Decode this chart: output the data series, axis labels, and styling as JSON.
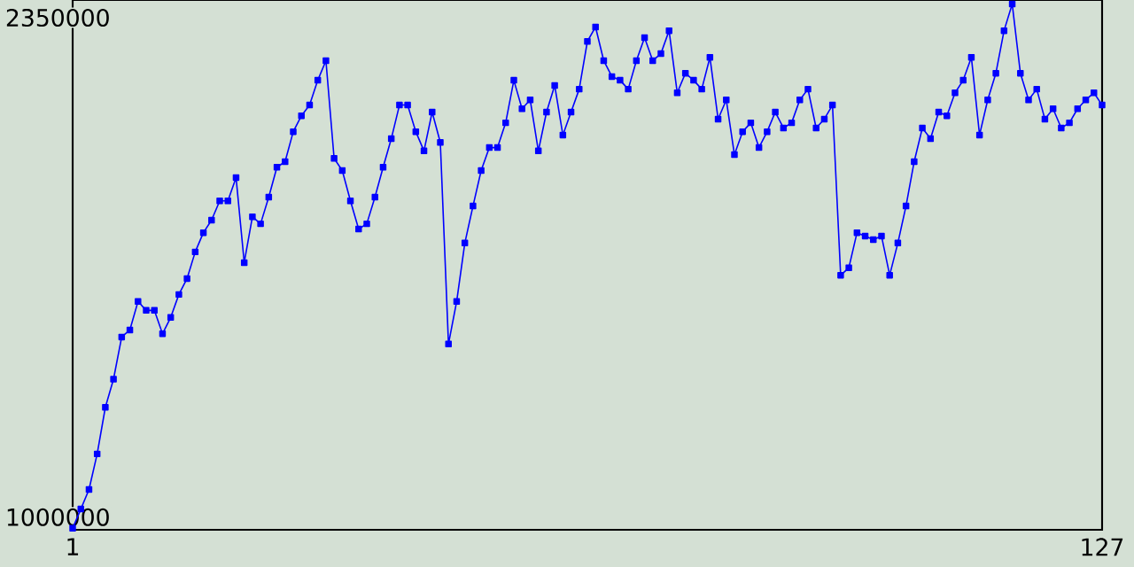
{
  "chart_data": {
    "type": "line",
    "x": [
      1,
      2,
      3,
      4,
      5,
      6,
      7,
      8,
      9,
      10,
      11,
      12,
      13,
      14,
      15,
      16,
      17,
      18,
      19,
      20,
      21,
      22,
      23,
      24,
      25,
      26,
      27,
      28,
      29,
      30,
      31,
      32,
      33,
      34,
      35,
      36,
      37,
      38,
      39,
      40,
      41,
      42,
      43,
      44,
      45,
      46,
      47,
      48,
      49,
      50,
      51,
      52,
      53,
      54,
      55,
      56,
      57,
      58,
      59,
      60,
      61,
      62,
      63,
      64,
      65,
      66,
      67,
      68,
      69,
      70,
      71,
      72,
      73,
      74,
      75,
      76,
      77,
      78,
      79,
      80,
      81,
      82,
      83,
      84,
      85,
      86,
      87,
      88,
      89,
      90,
      91,
      92,
      93,
      94,
      95,
      96,
      97,
      98,
      99,
      100,
      101,
      102,
      103,
      104,
      105,
      106,
      107,
      108,
      109,
      110,
      111,
      112,
      113,
      114,
      115,
      116,
      117,
      118,
      119,
      120,
      121,
      122,
      123,
      124,
      125,
      126,
      127
    ],
    "series": [
      {
        "color": "#0000ff",
        "values": [
          970000,
          1022000,
          1075000,
          1171000,
          1297000,
          1373000,
          1487000,
          1506000,
          1583000,
          1559000,
          1559000,
          1496000,
          1540000,
          1602000,
          1645000,
          1717000,
          1769000,
          1803000,
          1855000,
          1855000,
          1918000,
          1688000,
          1812000,
          1793000,
          1865000,
          1946000,
          1961000,
          2042000,
          2085000,
          2114000,
          2181000,
          2234000,
          1970000,
          1937000,
          1855000,
          1779000,
          1793000,
          1865000,
          1946000,
          2023000,
          2114000,
          2114000,
          2042000,
          1990000,
          2095000,
          2013000,
          1468000,
          1583000,
          1741000,
          1841000,
          1937000,
          1999000,
          1999000,
          2066000,
          2181000,
          2104000,
          2128000,
          1990000,
          2095000,
          2167000,
          2033000,
          2095000,
          2157000,
          2286000,
          2325000,
          2234000,
          2191000,
          2181000,
          2157000,
          2234000,
          2296000,
          2234000,
          2253000,
          2315000,
          2147000,
          2200000,
          2181000,
          2157000,
          2243000,
          2076000,
          2128000,
          1980000,
          2042000,
          2066000,
          1999000,
          2042000,
          2095000,
          2052000,
          2066000,
          2128000,
          2157000,
          2052000,
          2076000,
          2114000,
          1654000,
          1674000,
          1769000,
          1760000,
          1750000,
          1760000,
          1654000,
          1741000,
          1841000,
          1961000,
          2052000,
          2023000,
          2095000,
          2085000,
          2147000,
          2181000,
          2243000,
          2033000,
          2128000,
          2200000,
          2315000,
          2387000,
          2200000,
          2128000,
          2157000,
          2076000,
          2104000,
          2052000,
          2066000,
          2104000,
          2128000,
          2147000,
          2114000
        ]
      }
    ],
    "xlim": [
      1,
      127
    ],
    "ylim": [
      966000,
      2398000
    ],
    "xticks": [
      1,
      127
    ],
    "yticks": [
      1000000,
      2350000
    ],
    "marker": "square",
    "line_style": "solid"
  }
}
